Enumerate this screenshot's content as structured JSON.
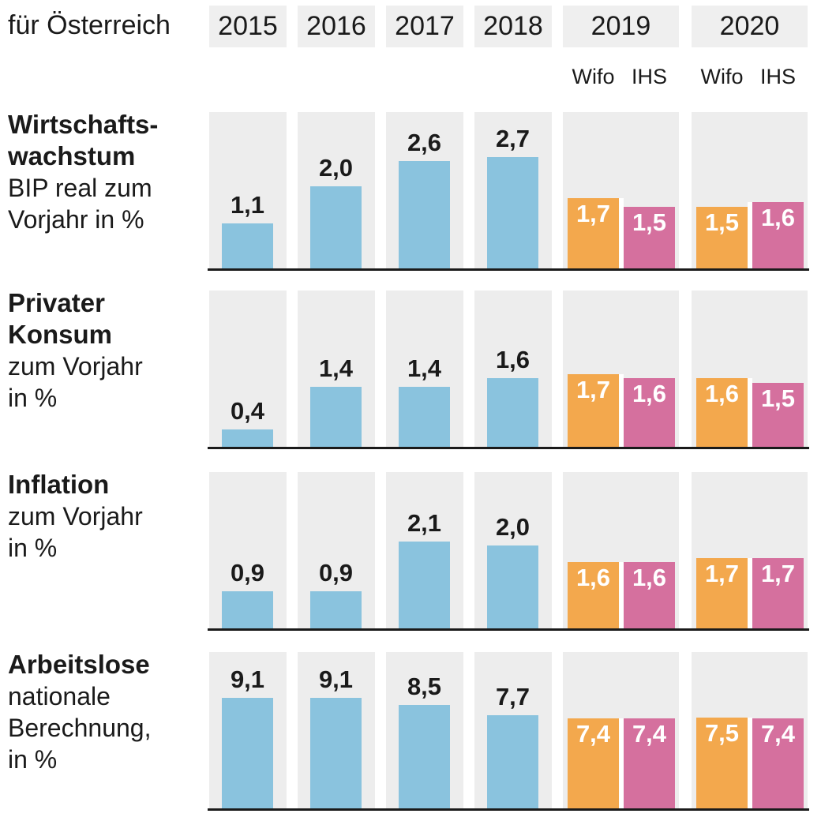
{
  "header": {
    "title": "für Österreich",
    "years": [
      "2015",
      "2016",
      "2017",
      "2018"
    ],
    "forecast_groups": [
      {
        "year": "2019",
        "institutes": [
          "Wifo",
          "IHS"
        ]
      },
      {
        "year": "2020",
        "institutes": [
          "Wifo",
          "IHS"
        ]
      }
    ]
  },
  "colors": {
    "actual_bar": "#8AC3DE",
    "wifo_bar": "#F3A84D",
    "ihs_bar": "#D5709E",
    "column_bg": "#EDEDED",
    "header_box_bg": "#EFEFEF",
    "baseline": "#1A1A1A",
    "text": "#1A1A1A",
    "value_text_light": "#FFFFFF"
  },
  "chart_data": {
    "type": "bar",
    "title": "für Österreich",
    "unit": "%",
    "categories": [
      "2015",
      "2016",
      "2017",
      "2018",
      "2019 Wifo",
      "2019 IHS",
      "2020 Wifo",
      "2020 IHS"
    ],
    "legend": [
      "Wifo",
      "IHS"
    ],
    "rows": [
      {
        "title_lines": [
          "Wirtschafts-",
          "wachstum"
        ],
        "subtitle_lines": [
          "BIP real zum",
          "Vorjahr in %"
        ],
        "actual": {
          "years": [
            "2015",
            "2016",
            "2017",
            "2018"
          ],
          "labels": [
            "1,1",
            "2,0",
            "2,6",
            "2,7"
          ],
          "values": [
            1.1,
            2.0,
            2.6,
            2.7
          ]
        },
        "forecasts": [
          {
            "year": "2019",
            "wifo_label": "1,7",
            "wifo": 1.7,
            "ihs_label": "1,5",
            "ihs": 1.5
          },
          {
            "year": "2020",
            "wifo_label": "1,5",
            "wifo": 1.5,
            "ihs_label": "1,6",
            "ihs": 1.6
          }
        ]
      },
      {
        "title_lines": [
          "Privater",
          "Konsum"
        ],
        "subtitle_lines": [
          "zum Vorjahr",
          "in %"
        ],
        "actual": {
          "years": [
            "2015",
            "2016",
            "2017",
            "2018"
          ],
          "labels": [
            "0,4",
            "1,4",
            "1,4",
            "1,6"
          ],
          "values": [
            0.4,
            1.4,
            1.4,
            1.6
          ]
        },
        "forecasts": [
          {
            "year": "2019",
            "wifo_label": "1,7",
            "wifo": 1.7,
            "ihs_label": "1,6",
            "ihs": 1.6
          },
          {
            "year": "2020",
            "wifo_label": "1,6",
            "wifo": 1.6,
            "ihs_label": "1,5",
            "ihs": 1.5
          }
        ]
      },
      {
        "title_lines": [
          "Inflation"
        ],
        "subtitle_lines": [
          "zum Vorjahr",
          "in %"
        ],
        "actual": {
          "years": [
            "2015",
            "2016",
            "2017",
            "2018"
          ],
          "labels": [
            "0,9",
            "0,9",
            "2,1",
            "2,0"
          ],
          "values": [
            0.9,
            0.9,
            2.1,
            2.0
          ]
        },
        "forecasts": [
          {
            "year": "2019",
            "wifo_label": "1,6",
            "wifo": 1.6,
            "ihs_label": "1,6",
            "ihs": 1.6
          },
          {
            "year": "2020",
            "wifo_label": "1,7",
            "wifo": 1.7,
            "ihs_label": "1,7",
            "ihs": 1.7
          }
        ]
      },
      {
        "title_lines": [
          "Arbeitslose"
        ],
        "subtitle_lines": [
          "nationale",
          "Berechnung,",
          "in %"
        ],
        "actual": {
          "years": [
            "2015",
            "2016",
            "2017",
            "2018"
          ],
          "labels": [
            "9,1",
            "9,1",
            "8,5",
            "7,7"
          ],
          "values": [
            9.1,
            9.1,
            8.5,
            7.7
          ]
        },
        "forecasts": [
          {
            "year": "2019",
            "wifo_label": "7,4",
            "wifo": 7.4,
            "ihs_label": "7,4",
            "ihs": 7.4
          },
          {
            "year": "2020",
            "wifo_label": "7,5",
            "wifo": 7.5,
            "ihs_label": "7,4",
            "ihs": 7.4
          }
        ]
      }
    ]
  }
}
